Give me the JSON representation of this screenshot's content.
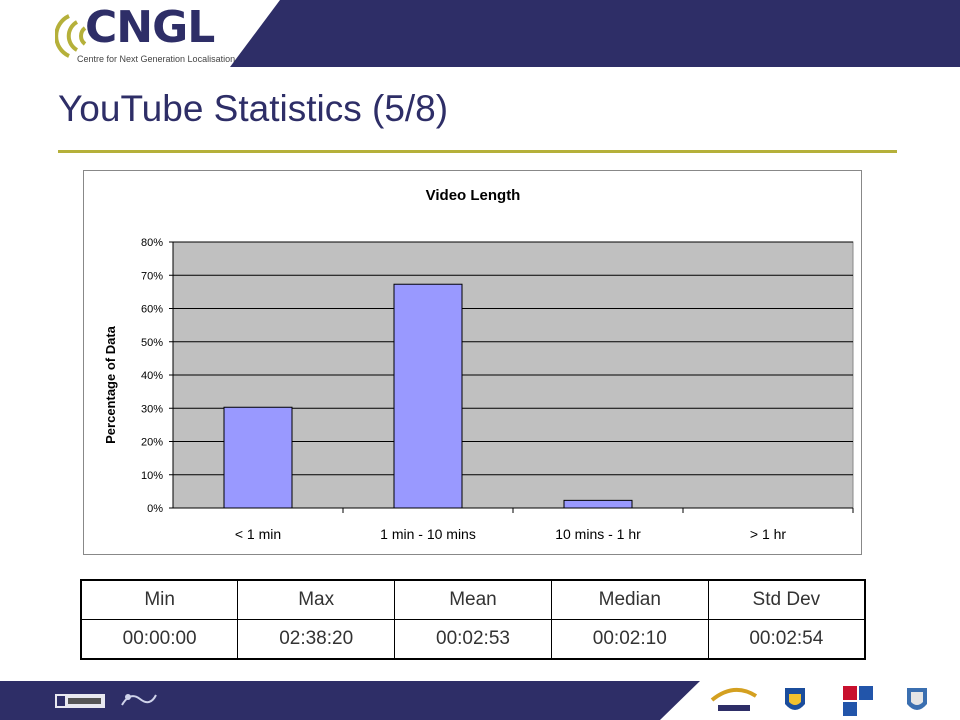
{
  "brand": {
    "name": "CNGL",
    "tagline": "Centre for Next Generation Localisation",
    "navy": "#2e2e67",
    "olive": "#b5b03a"
  },
  "page": {
    "title": "YouTube Statistics (5/8)"
  },
  "chart_data": {
    "type": "bar",
    "title": "Video Length",
    "xlabel": "",
    "ylabel": "Percentage of Data",
    "categories": [
      "< 1 min",
      "1 min - 10 mins",
      "10 mins - 1 hr",
      "> 1 hr"
    ],
    "values": [
      30.3,
      67.3,
      2.3,
      0
    ],
    "unit": "%",
    "ylim": [
      0,
      80
    ],
    "yticks": [
      "0%",
      "10%",
      "20%",
      "30%",
      "40%",
      "50%",
      "60%",
      "70%",
      "80%"
    ],
    "grid": true,
    "legend": "none",
    "bar_color": "#9999ff",
    "plot_bg": "#c0c0c0"
  },
  "stats_table": {
    "headers": [
      "Min",
      "Max",
      "Mean",
      "Median",
      "Std Dev"
    ],
    "values": [
      "00:00:00",
      "02:38:20",
      "00:02:53",
      "00:02:10",
      "00:02:54"
    ]
  },
  "footer": {
    "logos": [
      "ndp-logo",
      "sfi-logo",
      "dcu-logo",
      "ucd-logo",
      "tcd-logo",
      "university-crest-logo"
    ]
  }
}
